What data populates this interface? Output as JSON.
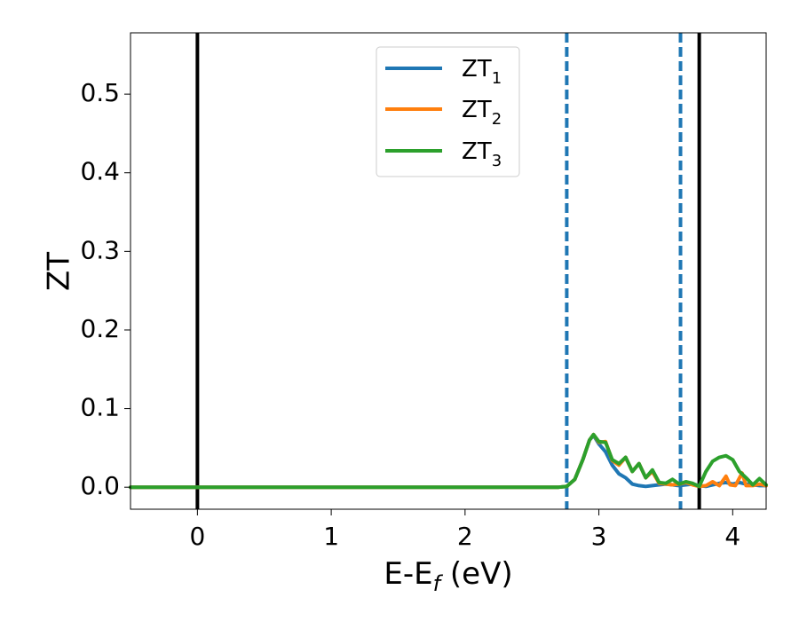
{
  "chart_data": {
    "type": "line",
    "title": "",
    "xlabel": {
      "base": "E-E",
      "sub": "f",
      "tail": " (eV)"
    },
    "ylabel": "ZT",
    "xlim": [
      -0.5,
      4.25
    ],
    "ylim": [
      -0.028,
      0.578
    ],
    "xticks": [
      0,
      1,
      2,
      3,
      4
    ],
    "xtick_labels": [
      "0",
      "1",
      "2",
      "3",
      "4"
    ],
    "yticks": [
      0.0,
      0.1,
      0.2,
      0.3,
      0.4,
      0.5
    ],
    "ytick_labels": [
      "0.0",
      "0.1",
      "0.2",
      "0.3",
      "0.4",
      "0.5"
    ],
    "grid": false,
    "legend_position": "top-center",
    "vlines": [
      {
        "x": 0.0,
        "style": "solid",
        "color": "#000000"
      },
      {
        "x": 3.75,
        "style": "solid",
        "color": "#000000"
      },
      {
        "x": 2.76,
        "style": "dashed",
        "color": "#1f77b4"
      },
      {
        "x": 3.61,
        "style": "dashed",
        "color": "#1f77b4"
      }
    ],
    "series": [
      {
        "name": "ZT",
        "sub": "1",
        "color": "#1f77b4",
        "x": [
          -0.5,
          2.0,
          2.7,
          2.76,
          2.82,
          2.88,
          2.93,
          2.96,
          3.0,
          3.05,
          3.1,
          3.15,
          3.2,
          3.25,
          3.3,
          3.35,
          3.4,
          3.45,
          3.5,
          3.55,
          3.6,
          3.65,
          3.7,
          3.75,
          3.8,
          3.85,
          3.9,
          3.95,
          4.0,
          4.05,
          4.1,
          4.15,
          4.2,
          4.25
        ],
        "y": [
          0.0,
          0.0,
          0.0,
          0.001,
          0.01,
          0.035,
          0.06,
          0.066,
          0.055,
          0.045,
          0.028,
          0.017,
          0.012,
          0.004,
          0.002,
          0.001,
          0.002,
          0.003,
          0.004,
          0.003,
          0.002,
          0.003,
          0.004,
          0.002,
          0.001,
          0.003,
          0.005,
          0.006,
          0.004,
          0.006,
          0.004,
          0.003,
          0.002,
          0.002
        ]
      },
      {
        "name": "ZT",
        "sub": "2",
        "color": "#ff7f0e",
        "x": [
          -0.5,
          2.0,
          2.7,
          2.76,
          2.82,
          2.88,
          2.93,
          2.96,
          3.0,
          3.05,
          3.1,
          3.15,
          3.2,
          3.25,
          3.3,
          3.35,
          3.4,
          3.45,
          3.5,
          3.55,
          3.6,
          3.65,
          3.7,
          3.75,
          3.8,
          3.85,
          3.9,
          3.95,
          3.98,
          4.02,
          4.07,
          4.1,
          4.15,
          4.2,
          4.25
        ],
        "y": [
          0.0,
          0.0,
          0.0,
          0.001,
          0.01,
          0.035,
          0.06,
          0.067,
          0.057,
          0.058,
          0.034,
          0.028,
          0.038,
          0.02,
          0.03,
          0.012,
          0.02,
          0.005,
          0.004,
          0.003,
          0.004,
          0.006,
          0.003,
          0.001,
          0.002,
          0.007,
          0.002,
          0.014,
          0.003,
          0.002,
          0.018,
          0.002,
          0.002,
          0.004,
          0.002
        ]
      },
      {
        "name": "ZT",
        "sub": "3",
        "color": "#2ca02c",
        "x": [
          -0.5,
          2.0,
          2.7,
          2.76,
          2.82,
          2.88,
          2.93,
          2.96,
          3.0,
          3.05,
          3.1,
          3.15,
          3.2,
          3.25,
          3.3,
          3.35,
          3.4,
          3.45,
          3.5,
          3.55,
          3.6,
          3.65,
          3.7,
          3.75,
          3.8,
          3.85,
          3.9,
          3.95,
          4.0,
          4.05,
          4.1,
          4.15,
          4.2,
          4.25
        ],
        "y": [
          0.0,
          0.0,
          0.0,
          0.001,
          0.01,
          0.035,
          0.06,
          0.067,
          0.058,
          0.057,
          0.035,
          0.03,
          0.038,
          0.02,
          0.03,
          0.012,
          0.022,
          0.006,
          0.005,
          0.01,
          0.004,
          0.007,
          0.005,
          0.001,
          0.02,
          0.033,
          0.038,
          0.04,
          0.035,
          0.02,
          0.012,
          0.003,
          0.011,
          0.003
        ]
      }
    ]
  }
}
